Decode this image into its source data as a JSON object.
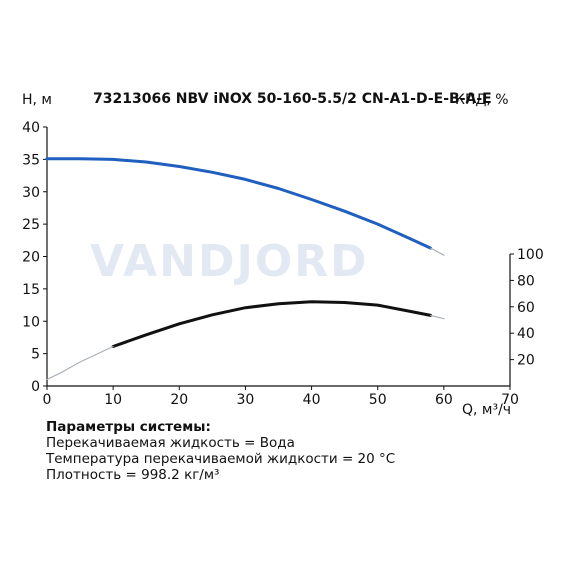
{
  "title": "73213066 NBV iNOX 50-160-5.5/2 CN-A1-D-E-B-A-E",
  "watermark": "VANDJORD",
  "chart_data": {
    "type": "line",
    "xlabel": "Q, м³/ч",
    "ylabel": "H, м",
    "y2label": "КПД, %",
    "xlim": [
      0,
      70
    ],
    "ylim": [
      0,
      40
    ],
    "y2lim": [
      0,
      100
    ],
    "xticks": [
      "0",
      "10",
      "20",
      "30",
      "40",
      "50",
      "60",
      "70"
    ],
    "yticks": [
      "0",
      "5",
      "10",
      "15",
      "20",
      "25",
      "30",
      "35",
      "40"
    ],
    "y2ticks": [
      "20",
      "40",
      "60",
      "80",
      "100"
    ],
    "grid": false,
    "series": [
      {
        "color": "#1f5fbf",
        "role": "head-operating",
        "x": [
          0,
          5,
          10,
          15,
          20,
          25,
          30,
          35,
          40,
          45,
          50,
          55,
          58
        ],
        "y": [
          35.1,
          35.1,
          35.0,
          34.6,
          33.9,
          33.0,
          31.9,
          30.5,
          28.8,
          27.0,
          25.0,
          22.7,
          21.3
        ]
      },
      {
        "color": "#aab0bb",
        "role": "head-extension",
        "x": [
          58,
          60
        ],
        "y": [
          21.3,
          20.2
        ]
      },
      {
        "color": "#111111",
        "role": "efficiency-operating",
        "x": [
          10,
          15,
          20,
          25,
          30,
          35,
          40,
          45,
          50,
          55,
          58
        ],
        "y": [
          6.1,
          7.9,
          9.6,
          11.0,
          12.1,
          12.7,
          13.0,
          12.9,
          12.5,
          11.5,
          10.9
        ]
      },
      {
        "color": "#aab0bb",
        "role": "efficiency-extension",
        "x": [
          0,
          2,
          5,
          10
        ],
        "y": [
          1.0,
          2.0,
          3.7,
          6.1
        ]
      },
      {
        "color": "#aab0bb",
        "role": "efficiency-extension-end",
        "x": [
          58,
          60
        ],
        "y": [
          10.9,
          10.4
        ]
      }
    ]
  },
  "params": {
    "header": "Параметры системы:",
    "lines": [
      "Перекачиваемая жидкость = Вода",
      "Температура перекачиваемой жидкости = 20 °C",
      "Плотность = 998.2 кг/м³"
    ]
  }
}
